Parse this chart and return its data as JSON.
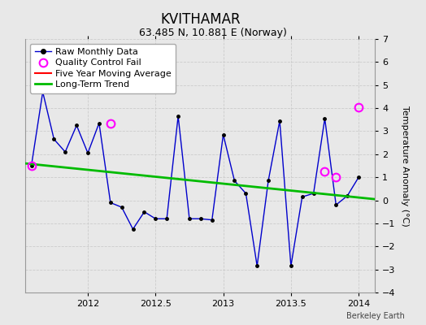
{
  "title": "KVITHAMAR",
  "subtitle": "63.485 N, 10.881 E (Norway)",
  "ylabel": "Temperature Anomaly (°C)",
  "watermark": "Berkeley Earth",
  "xlim": [
    2011.54,
    2014.12
  ],
  "ylim": [
    -4,
    7
  ],
  "yticks": [
    -4,
    -3,
    -2,
    -1,
    0,
    1,
    2,
    3,
    4,
    5,
    6,
    7
  ],
  "xticks": [
    2012,
    2012.5,
    2013,
    2013.5,
    2014
  ],
  "background_color": "#e8e8e8",
  "plot_bg_color": "#e8e8e8",
  "raw_x": [
    2011.583,
    2011.667,
    2011.75,
    2011.833,
    2011.917,
    2012.0,
    2012.083,
    2012.167,
    2012.25,
    2012.333,
    2012.417,
    2012.5,
    2012.583,
    2012.667,
    2012.75,
    2012.833,
    2012.917,
    2013.0,
    2013.083,
    2013.167,
    2013.25,
    2013.333,
    2013.417,
    2013.5,
    2013.583,
    2013.667,
    2013.75,
    2013.833,
    2013.917,
    2014.0
  ],
  "raw_y": [
    1.5,
    4.7,
    2.65,
    2.1,
    3.25,
    2.05,
    3.35,
    -0.1,
    -0.3,
    -1.25,
    -0.5,
    -0.8,
    -0.8,
    3.65,
    -0.8,
    -0.8,
    -0.85,
    2.85,
    0.85,
    0.3,
    -2.85,
    0.85,
    3.45,
    -2.85,
    0.15,
    0.3,
    3.55,
    -0.2,
    0.2,
    1.0
  ],
  "qc_fail_x": [
    2011.583,
    2012.167,
    2013.75,
    2013.833,
    2014.0
  ],
  "qc_fail_y": [
    1.5,
    3.35,
    1.25,
    1.0,
    4.05
  ],
  "trend_x": [
    2011.54,
    2014.12
  ],
  "trend_y": [
    1.6,
    0.05
  ],
  "raw_line_color": "#0000cc",
  "raw_marker_color": "#000000",
  "qc_color": "#ff00ff",
  "trend_color": "#00bb00",
  "ma_color": "#ff0000",
  "grid_color": "#cccccc",
  "title_fontsize": 12,
  "subtitle_fontsize": 9,
  "label_fontsize": 8,
  "tick_fontsize": 8,
  "legend_fontsize": 8
}
